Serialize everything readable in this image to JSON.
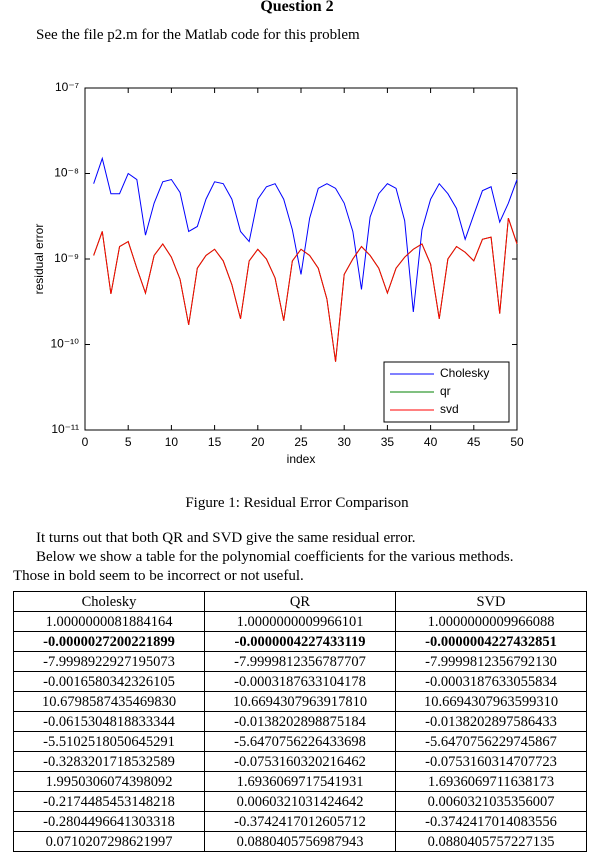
{
  "header": {
    "title": "Question 2",
    "intro": "See the file p2.m for the Matlab code for this problem"
  },
  "chart_data": {
    "type": "line",
    "xlabel": "index",
    "ylabel": "residual error",
    "log_y": true,
    "legend": "lower right",
    "x": [
      1,
      2,
      3,
      4,
      5,
      6,
      7,
      8,
      9,
      10,
      11,
      12,
      13,
      14,
      15,
      16,
      17,
      18,
      19,
      20,
      21,
      22,
      23,
      24,
      25,
      26,
      27,
      28,
      29,
      30,
      31,
      32,
      33,
      34,
      35,
      36,
      37,
      38,
      39,
      40,
      41,
      42,
      43,
      44,
      45,
      46,
      47,
      48,
      49,
      50
    ],
    "xlim": [
      0,
      50
    ],
    "xticks": [
      0,
      5,
      10,
      15,
      20,
      25,
      30,
      35,
      40,
      45,
      50
    ],
    "ylim": [
      1e-11,
      1e-07
    ],
    "yticks": [
      {
        "value": 1e-11,
        "label": "10⁻¹¹"
      },
      {
        "value": 1e-10,
        "label": "10⁻¹⁰"
      },
      {
        "value": 1e-09,
        "label": "10⁻⁹"
      },
      {
        "value": 1e-08,
        "label": "10⁻⁸"
      },
      {
        "value": 1e-07,
        "label": "10⁻⁷"
      }
    ],
    "series": [
      {
        "name": "Cholesky",
        "color": "#0000ff",
        "values": [
          7.6e-09,
          1.5e-08,
          5.8e-09,
          5.8e-09,
          1e-08,
          8.5e-09,
          1.9e-09,
          4.5e-09,
          8e-09,
          8.5e-09,
          6e-09,
          2.1e-09,
          2.4e-09,
          5e-09,
          8e-09,
          7.6e-09,
          5e-09,
          2.1e-09,
          1.6e-09,
          5e-09,
          7e-09,
          7.6e-09,
          5e-09,
          2.2e-09,
          6.6e-10,
          3e-09,
          6.7e-09,
          7.6e-09,
          6.7e-09,
          4.5e-09,
          2.1e-09,
          4.4e-10,
          3.1e-09,
          5.8e-09,
          7.6e-09,
          6.7e-09,
          2.8e-09,
          2.4e-10,
          2.2e-09,
          5e-09,
          7.6e-09,
          5.8e-09,
          3.9e-09,
          1.7e-09,
          3.3e-09,
          6.3e-09,
          7e-09,
          2.7e-09,
          4.5e-09,
          8.5e-09
        ]
      },
      {
        "name": "qr",
        "color": "#008000",
        "values": [
          1.1e-09,
          2.1e-09,
          3.9e-10,
          1.4e-09,
          1.6e-09,
          7.8e-10,
          4e-10,
          1.1e-09,
          1.5e-09,
          1.05e-09,
          5.8e-10,
          1.7e-10,
          7.8e-10,
          1.1e-09,
          1.3e-09,
          9.5e-10,
          5e-10,
          2e-10,
          9.5e-10,
          1.3e-09,
          1e-09,
          6e-10,
          1.9e-10,
          9.5e-10,
          1.3e-09,
          1.1e-09,
          7.8e-10,
          3.4e-10,
          6.3e-11,
          6.6e-10,
          1e-09,
          1.4e-09,
          1.1e-09,
          7.8e-10,
          4e-10,
          7.8e-10,
          1.05e-09,
          1.3e-09,
          1.5e-09,
          8.7e-10,
          2e-10,
          1e-09,
          1.4e-09,
          1.2e-09,
          9.5e-10,
          1.7e-09,
          1.8e-09,
          2.3e-10,
          3e-09,
          1.5e-09
        ]
      },
      {
        "name": "svd",
        "color": "#ff0000",
        "values": [
          1.1e-09,
          2.1e-09,
          3.9e-10,
          1.4e-09,
          1.6e-09,
          7.8e-10,
          4e-10,
          1.1e-09,
          1.5e-09,
          1.05e-09,
          5.8e-10,
          1.7e-10,
          7.8e-10,
          1.1e-09,
          1.3e-09,
          9.5e-10,
          5e-10,
          2e-10,
          9.5e-10,
          1.3e-09,
          1e-09,
          6e-10,
          1.9e-10,
          9.5e-10,
          1.3e-09,
          1.1e-09,
          7.8e-10,
          3.4e-10,
          6.3e-11,
          6.6e-10,
          1e-09,
          1.4e-09,
          1.1e-09,
          7.8e-10,
          4e-10,
          7.8e-10,
          1.05e-09,
          1.3e-09,
          1.5e-09,
          8.7e-10,
          2e-10,
          1e-09,
          1.4e-09,
          1.2e-09,
          9.5e-10,
          1.7e-09,
          1.8e-09,
          2.3e-10,
          3e-09,
          1.5e-09
        ]
      }
    ]
  },
  "caption": "Figure 1: Residual Error Comparison",
  "paragraphs": [
    "It turns out that both QR and SVD give the same residual error.",
    "Below we show a table for the polynomial coefficients for the various methods.",
    "Those in bold seem to be incorrect or not useful."
  ],
  "table": {
    "columns": [
      "Cholesky",
      "QR",
      "SVD"
    ],
    "bold_rows": [
      1
    ],
    "rows": [
      [
        "1.0000000081884164",
        "1.0000000009966101",
        "1.0000000009966088"
      ],
      [
        "-0.0000027200221899",
        "-0.0000004227433119",
        "-0.0000004227432851"
      ],
      [
        "-7.9998922927195073",
        "-7.9999812356787707",
        "-7.9999812356792130"
      ],
      [
        "-0.0016580342326105",
        "-0.0003187633104178",
        "-0.0003187633055834"
      ],
      [
        "10.6798587435469830",
        "10.6694307963917810",
        "10.6694307963599310"
      ],
      [
        "-0.0615304818833344",
        "-0.0138202898875184",
        "-0.0138202897586433"
      ],
      [
        "-5.5102518050645291",
        "-5.6470756226433698",
        "-5.6470756229745867"
      ],
      [
        "-0.3283201718532589",
        "-0.0753160320216462",
        "-0.0753160314707723"
      ],
      [
        "1.9950306074398092",
        "1.6936069717541931",
        "1.6936069711638173"
      ],
      [
        "-0.2174485453148218",
        "0.0060321031424642",
        "0.0060321035356007"
      ],
      [
        "-0.2804496641303318",
        "-0.3742417012605712",
        "-0.3742417014083556"
      ],
      [
        "0.0710207298621997",
        "0.0880405756987943",
        "0.0880405757227135"
      ]
    ]
  }
}
